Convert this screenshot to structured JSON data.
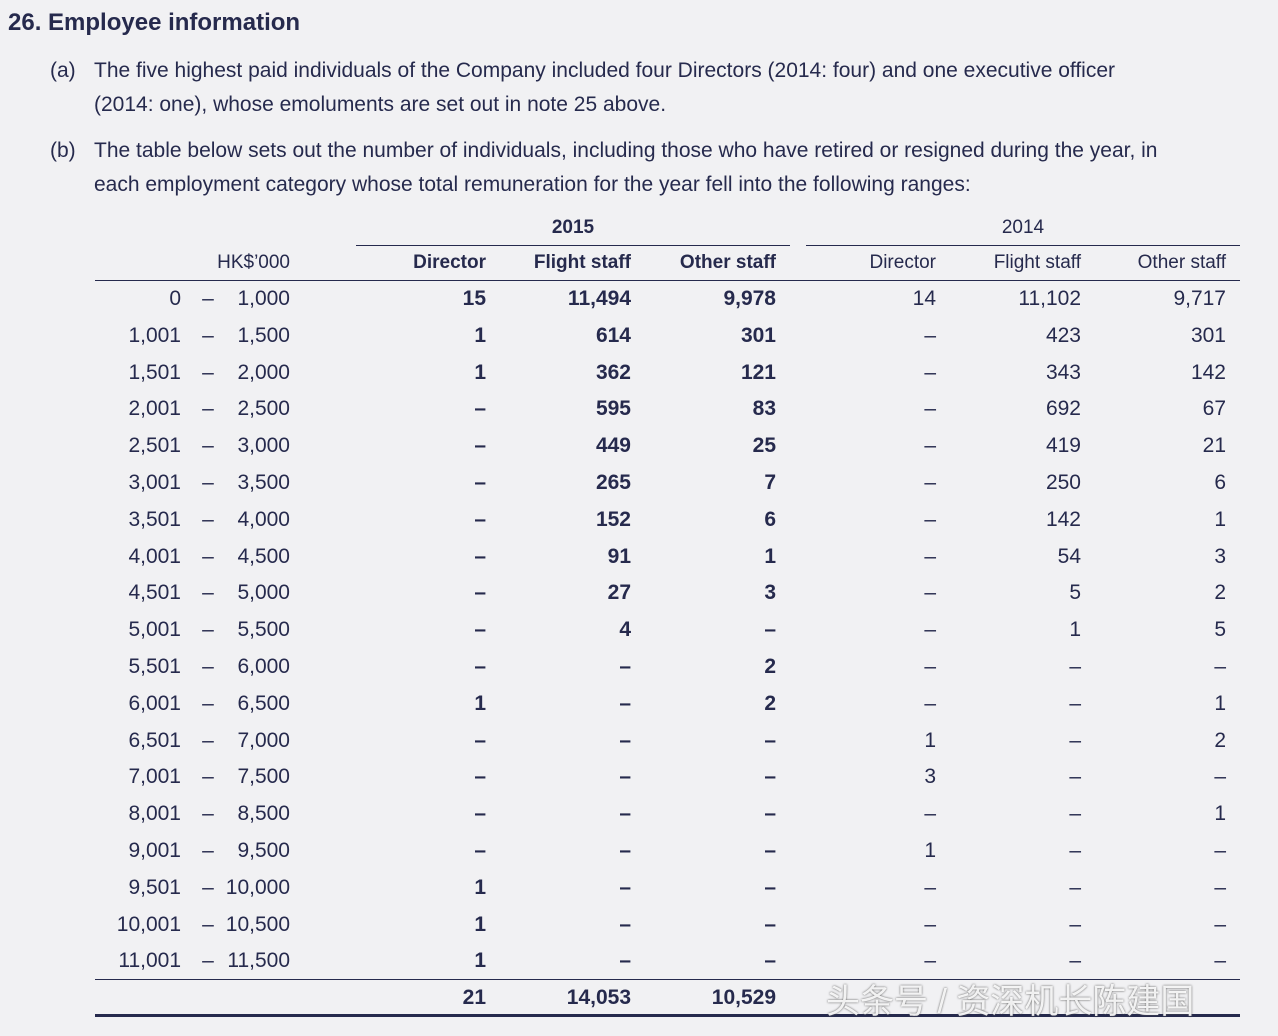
{
  "header": {
    "title": "26. Employee information"
  },
  "notes": [
    {
      "label": "(a)",
      "lines": [
        "The five highest paid individuals of the Company included four Directors (2014: four) and one executive officer",
        "(2014: one), whose emoluments are set out in note 25 above."
      ]
    },
    {
      "label": "(b)",
      "lines": [
        "The table below sets out the number of individuals, including those who have retired or resigned during the year, in",
        "each employment category whose total remuneration for the year fell into the following ranges:"
      ]
    }
  ],
  "table": {
    "years": [
      "2015",
      "2014"
    ],
    "columns": [
      "HK$’000",
      "Director",
      "Flight staff",
      "Other staff",
      "Director",
      "Flight staff",
      "Other staff"
    ],
    "rows": [
      [
        "0",
        "–",
        "1,000",
        "15",
        "11,494",
        "9,978",
        "14",
        "11,102",
        "9,717"
      ],
      [
        "1,001",
        "–",
        "1,500",
        "1",
        "614",
        "301",
        "–",
        "423",
        "301"
      ],
      [
        "1,501",
        "–",
        "2,000",
        "1",
        "362",
        "121",
        "–",
        "343",
        "142"
      ],
      [
        "2,001",
        "–",
        "2,500",
        "–",
        "595",
        "83",
        "–",
        "692",
        "67"
      ],
      [
        "2,501",
        "–",
        "3,000",
        "–",
        "449",
        "25",
        "–",
        "419",
        "21"
      ],
      [
        "3,001",
        "–",
        "3,500",
        "–",
        "265",
        "7",
        "–",
        "250",
        "6"
      ],
      [
        "3,501",
        "–",
        "4,000",
        "–",
        "152",
        "6",
        "–",
        "142",
        "1"
      ],
      [
        "4,001",
        "–",
        "4,500",
        "–",
        "91",
        "1",
        "–",
        "54",
        "3"
      ],
      [
        "4,501",
        "–",
        "5,000",
        "–",
        "27",
        "3",
        "–",
        "5",
        "2"
      ],
      [
        "5,001",
        "–",
        "5,500",
        "–",
        "4",
        "–",
        "–",
        "1",
        "5"
      ],
      [
        "5,501",
        "–",
        "6,000",
        "–",
        "–",
        "2",
        "–",
        "–",
        "–"
      ],
      [
        "6,001",
        "–",
        "6,500",
        "1",
        "–",
        "2",
        "–",
        "–",
        "1"
      ],
      [
        "6,501",
        "–",
        "7,000",
        "–",
        "–",
        "–",
        "1",
        "–",
        "2"
      ],
      [
        "7,001",
        "–",
        "7,500",
        "–",
        "–",
        "–",
        "3",
        "–",
        "–"
      ],
      [
        "8,001",
        "–",
        "8,500",
        "–",
        "–",
        "–",
        "–",
        "–",
        "1"
      ],
      [
        "9,001",
        "–",
        "9,500",
        "–",
        "–",
        "–",
        "1",
        "–",
        "–"
      ],
      [
        "9,501",
        "–",
        "10,000",
        "1",
        "–",
        "–",
        "–",
        "–",
        "–"
      ],
      [
        "10,001",
        "–",
        "10,500",
        "1",
        "–",
        "–",
        "–",
        "–",
        "–"
      ],
      [
        "11,001",
        "–",
        "11,500",
        "1",
        "–",
        "–",
        "–",
        "–",
        "–"
      ]
    ],
    "total": [
      "21",
      "14,053",
      "10,529"
    ]
  },
  "watermark": "头条号 / 资深机长陈建国"
}
